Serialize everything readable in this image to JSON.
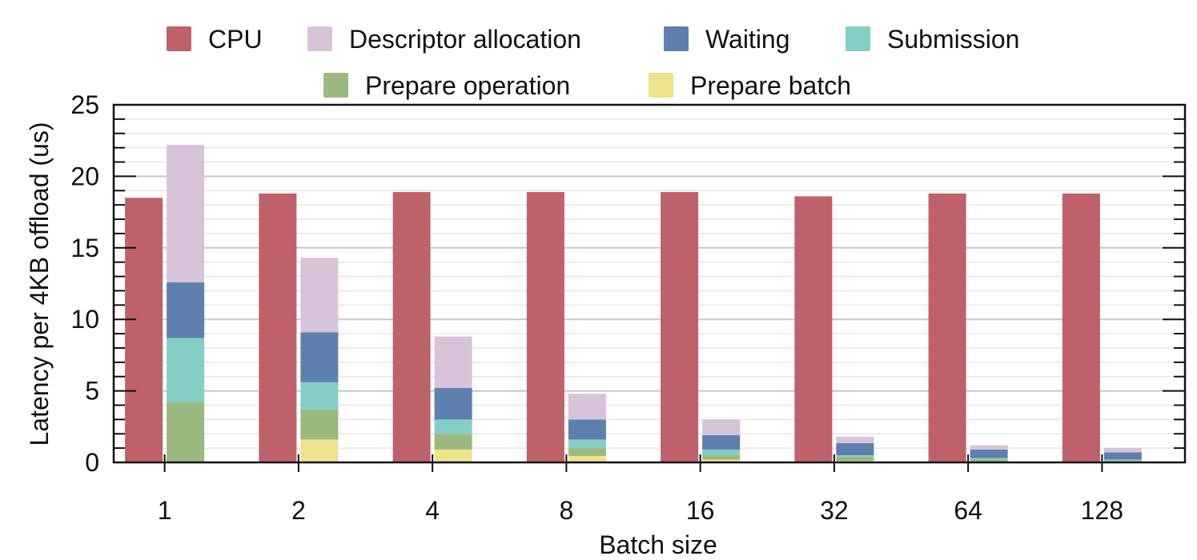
{
  "chart_data": {
    "type": "bar",
    "subtype": "grouped-stacked",
    "title": "",
    "xlabel": "Batch size",
    "ylabel": "Latency per 4KB offload (us)",
    "ylim": [
      0,
      25
    ],
    "yticks": [
      "0",
      "5",
      "10",
      "15",
      "20",
      "25"
    ],
    "grid": "horizontal",
    "legend_position": "top",
    "categories": [
      "1",
      "2",
      "4",
      "8",
      "16",
      "32",
      "64",
      "128"
    ],
    "series": [
      {
        "name": "CPU",
        "stack": "cpu",
        "color": "#be616b",
        "values": [
          18.5,
          18.8,
          18.9,
          18.9,
          18.9,
          18.6,
          18.8,
          18.8
        ]
      },
      {
        "name": "Prepare batch",
        "stack": "offload",
        "color": "#ede38c",
        "values": [
          0.0,
          1.6,
          0.9,
          0.45,
          0.2,
          0.1,
          0.05,
          0.03
        ]
      },
      {
        "name": "Prepare operation",
        "stack": "offload",
        "color": "#9bb97f",
        "values": [
          4.2,
          2.1,
          1.1,
          0.55,
          0.3,
          0.3,
          0.15,
          0.07
        ]
      },
      {
        "name": "Submission",
        "stack": "offload",
        "color": "#84cec5",
        "values": [
          4.5,
          1.9,
          1.0,
          0.6,
          0.4,
          0.1,
          0.1,
          0.1
        ]
      },
      {
        "name": "Waiting",
        "stack": "offload",
        "color": "#5e80ae",
        "values": [
          3.9,
          3.5,
          2.2,
          1.4,
          1.0,
          0.85,
          0.6,
          0.5
        ]
      },
      {
        "name": "Descriptor allocation",
        "stack": "offload",
        "color": "#d8c4d8",
        "values": [
          9.6,
          5.2,
          3.6,
          1.8,
          1.1,
          0.45,
          0.3,
          0.3
        ]
      }
    ],
    "legend_order": [
      "CPU",
      "Descriptor allocation",
      "Waiting",
      "Submission",
      "Prepare operation",
      "Prepare batch"
    ]
  }
}
